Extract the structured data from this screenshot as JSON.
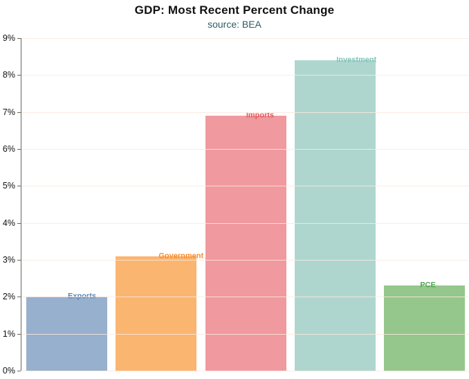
{
  "chart_data": {
    "type": "bar",
    "title": "GDP: Most Recent Percent Change",
    "subtitle": "source: BEA",
    "categories": [
      "Exports",
      "Government",
      "Imports",
      "Investment",
      "PCE"
    ],
    "values": [
      2.0,
      3.1,
      6.9,
      8.4,
      2.3
    ],
    "value_unit": "percent",
    "xlabel": "",
    "ylabel": "",
    "ylim": [
      0,
      9
    ],
    "ytick_labels": [
      "0%",
      "1%",
      "2%",
      "3%",
      "4%",
      "5%",
      "6%",
      "7%",
      "8%",
      "9%"
    ],
    "grid": "horizontal faint gridlines at every 1%, drawn over bars",
    "legend": "none (bars labeled directly at bar tops)",
    "bar_colors": [
      "#97b0cd",
      "#fab571",
      "#f0999e",
      "#aed6cf",
      "#95c68b"
    ],
    "bar_label_colors": [
      "#5b87b5",
      "#f78b29",
      "#e05a5f",
      "#7fc4ba",
      "#53a653"
    ],
    "colors": {
      "title": "#111111",
      "subtitle": "#2f5d66",
      "axis": "#666666",
      "tick_label": "#111111",
      "gridline": "#fbe9dd",
      "background": "#ffffff"
    }
  }
}
